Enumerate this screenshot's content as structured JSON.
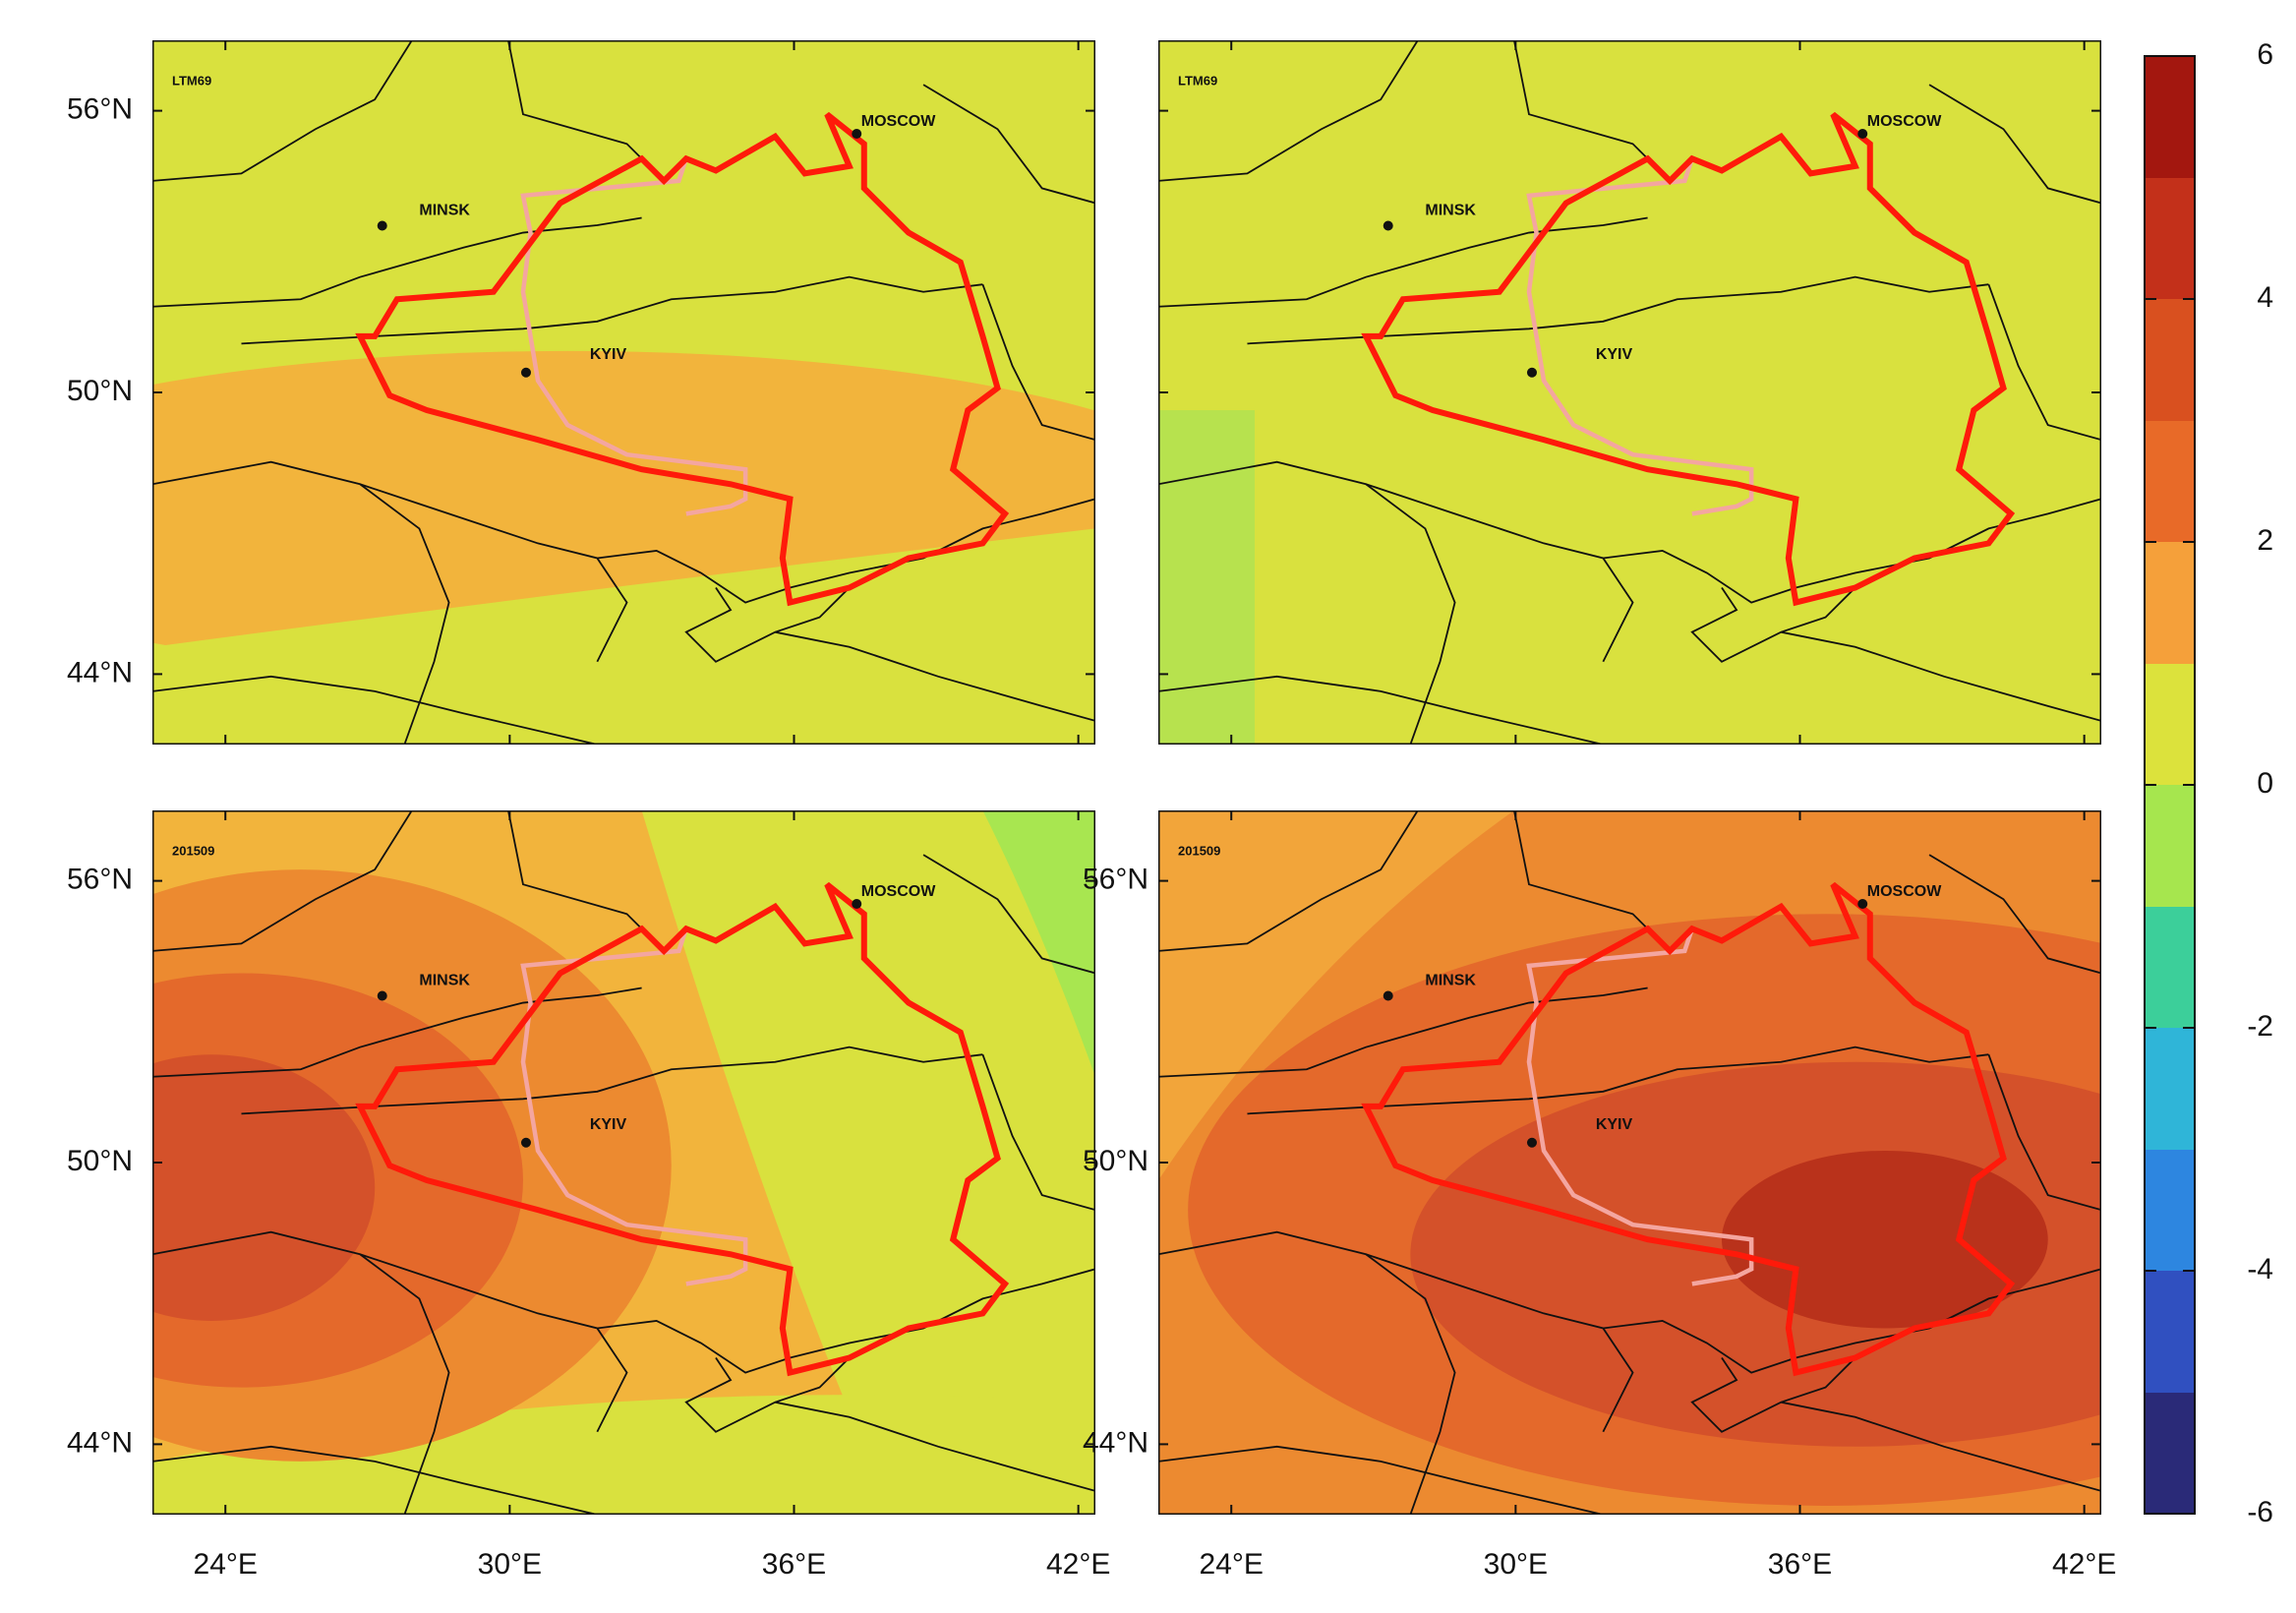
{
  "map": {
    "xlim": [
      22.46,
      42.36
    ],
    "ylim": [
      42.5,
      57.5
    ],
    "lon_ticks": [
      {
        "value": 24,
        "label": "24°E"
      },
      {
        "value": 30,
        "label": "30°E"
      },
      {
        "value": 36,
        "label": "36°E"
      },
      {
        "value": 42,
        "label": "42°E"
      }
    ],
    "lat_ticks": [
      {
        "value": 56,
        "label": "56°N"
      },
      {
        "value": 50,
        "label": "50°N"
      },
      {
        "value": 44,
        "label": "44°N"
      }
    ],
    "panels": [
      {
        "label": "LTM69",
        "lat_labels": true,
        "lon_labels": false,
        "cities": [
          "MINSK",
          "KYIV",
          "MOSCOW"
        ]
      },
      {
        "label": "LTM69",
        "lat_labels": false,
        "lon_labels": false,
        "cities": [
          "MINSK",
          "KYIV",
          "MOSCOW"
        ]
      },
      {
        "label": "201509",
        "lat_labels": true,
        "lon_labels": true,
        "cities": [
          "MINSK",
          "KYIV",
          "MOSCOW"
        ]
      },
      {
        "label": "201509",
        "lat_labels": true,
        "lon_labels": true,
        "cities": [
          "MINSK",
          "KYIV",
          "MOSCOW"
        ]
      }
    ],
    "colorbar": {
      "lim": [
        -6,
        6
      ],
      "ticks": [
        6,
        4,
        2,
        0,
        -2,
        -4,
        -6
      ]
    }
  }
}
